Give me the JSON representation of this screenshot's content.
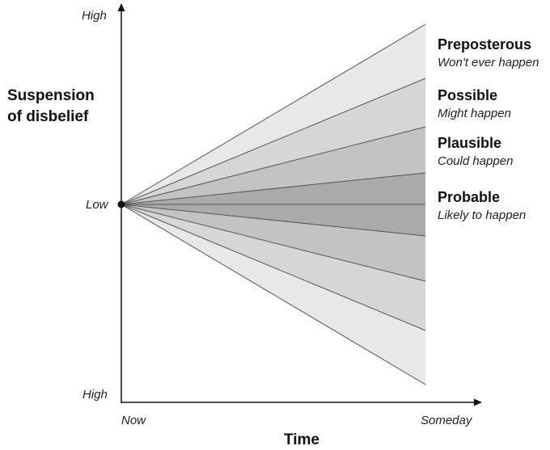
{
  "axes": {
    "y_label_line1": "Suspension",
    "y_label_line2": "of disbelief",
    "y_top": "High",
    "y_middle": "Low",
    "y_bottom": "High",
    "x_label": "Time",
    "x_start": "Now",
    "x_end": "Someday"
  },
  "categories": [
    {
      "title": "Preposterous",
      "subtitle": "Won't ever happen"
    },
    {
      "title": "Possible",
      "subtitle": "Might happen"
    },
    {
      "title": "Plausible",
      "subtitle": "Could happen"
    },
    {
      "title": "Probable",
      "subtitle": "Likely to happen"
    }
  ],
  "colors": {
    "band_outer": "#e8e8e8",
    "band_2": "#d6d6d6",
    "band_3": "#c3c3c3",
    "band_inner": "#aaaaaa",
    "lines": "#555555",
    "axis": "#111111"
  }
}
